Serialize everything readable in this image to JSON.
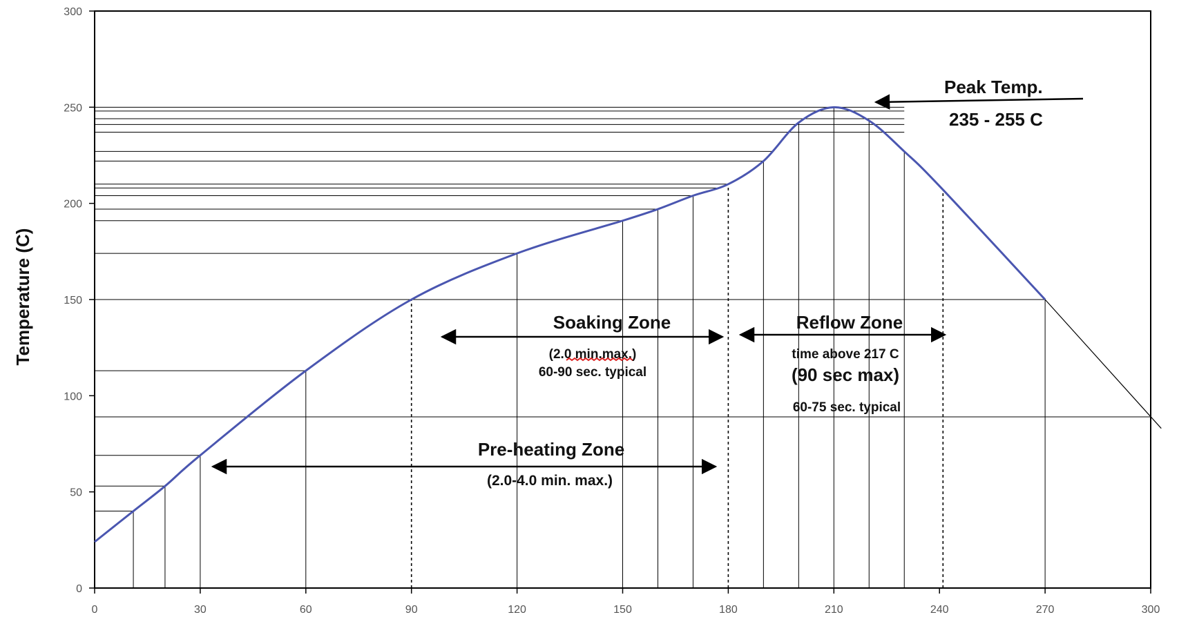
{
  "chart_data": {
    "type": "line",
    "ylabel": "Temperature (C)",
    "xlabel": "",
    "xlim": [
      0,
      300
    ],
    "ylim": [
      0,
      300
    ],
    "x_ticks": [
      0,
      30,
      60,
      90,
      120,
      150,
      180,
      210,
      240,
      270,
      300
    ],
    "y_ticks": [
      0,
      50,
      100,
      150,
      200,
      250,
      300
    ],
    "line_color": "#4a56b0",
    "series": [
      {
        "x": [
          0,
          11,
          20,
          30,
          60,
          90,
          120,
          150,
          160,
          170,
          180,
          190,
          200,
          210,
          220,
          230,
          240,
          270
        ],
        "y": [
          24,
          40,
          53,
          69,
          113,
          150,
          174,
          191,
          197,
          204,
          210,
          222,
          242,
          250,
          243,
          227,
          209,
          150
        ]
      }
    ],
    "extension_line": {
      "x": [
        270,
        303
      ],
      "y": [
        150,
        83
      ]
    },
    "horizontal_lines": [
      40,
      53,
      69,
      89,
      113,
      150,
      174,
      191,
      197,
      204,
      208,
      210,
      222,
      227,
      237,
      241,
      244,
      248,
      250
    ],
    "vertical_lines": [
      11,
      20,
      30,
      60,
      120,
      150,
      160,
      170,
      190,
      200,
      210,
      220,
      230,
      270
    ],
    "dashed_lines": [
      90,
      180,
      241
    ],
    "annotations": {
      "peak": {
        "title": "Peak Temp.",
        "range": "235 - 255 C"
      },
      "soaking": {
        "title": "Soaking Zone",
        "line1": "(2.0 min.max.)",
        "line2": "60-90 sec. typical"
      },
      "reflow": {
        "title": "Reflow Zone",
        "line1": "time above 217 C",
        "line2": "(90 sec max)",
        "line3": "60-75 sec. typical"
      },
      "preheat": {
        "title": "Pre-heating Zone",
        "line1": "(2.0-4.0 min. max.)"
      }
    }
  }
}
